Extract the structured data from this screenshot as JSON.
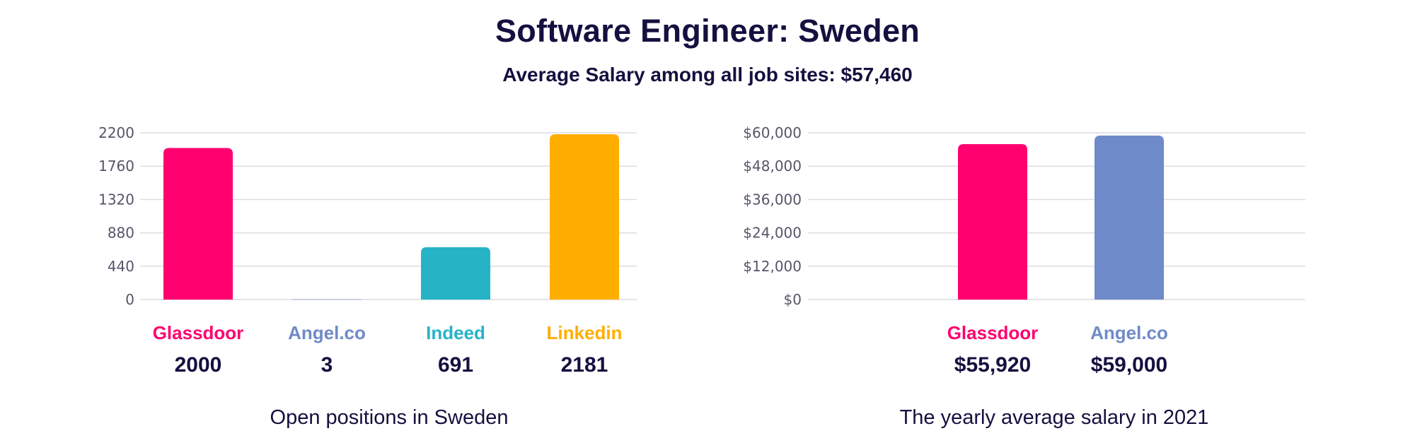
{
  "header": {
    "title": "Software Engineer: Sweden",
    "subtitle": "Average Salary among all job sites: $57,460"
  },
  "chart_data": [
    {
      "type": "bar",
      "title": "Open positions in Sweden",
      "categories": [
        "Glassdoor",
        "Angel.co",
        "Indeed",
        "Linkedin"
      ],
      "values": [
        2000,
        3,
        691,
        2181
      ],
      "value_labels": [
        "2000",
        "3",
        "691",
        "2181"
      ],
      "colors": [
        "#ff006e",
        "#6f8ac9",
        "#26b3c6",
        "#ffae00"
      ],
      "yticks": [
        "0",
        "440",
        "880",
        "1320",
        "1760",
        "2200"
      ],
      "ylim": [
        0,
        2200
      ],
      "grid": true
    },
    {
      "type": "bar",
      "title": "The yearly average salary in 2021",
      "categories": [
        "Glassdoor",
        "Angel.co"
      ],
      "values": [
        55920,
        59000
      ],
      "value_labels": [
        "$55,920",
        "$59,000"
      ],
      "colors": [
        "#ff006e",
        "#6f8ac9"
      ],
      "yticks": [
        "$0",
        "$12,000",
        "$24,000",
        "$36,000",
        "$48,000",
        "$60,000"
      ],
      "ylim": [
        0,
        60000
      ],
      "grid": true
    }
  ]
}
